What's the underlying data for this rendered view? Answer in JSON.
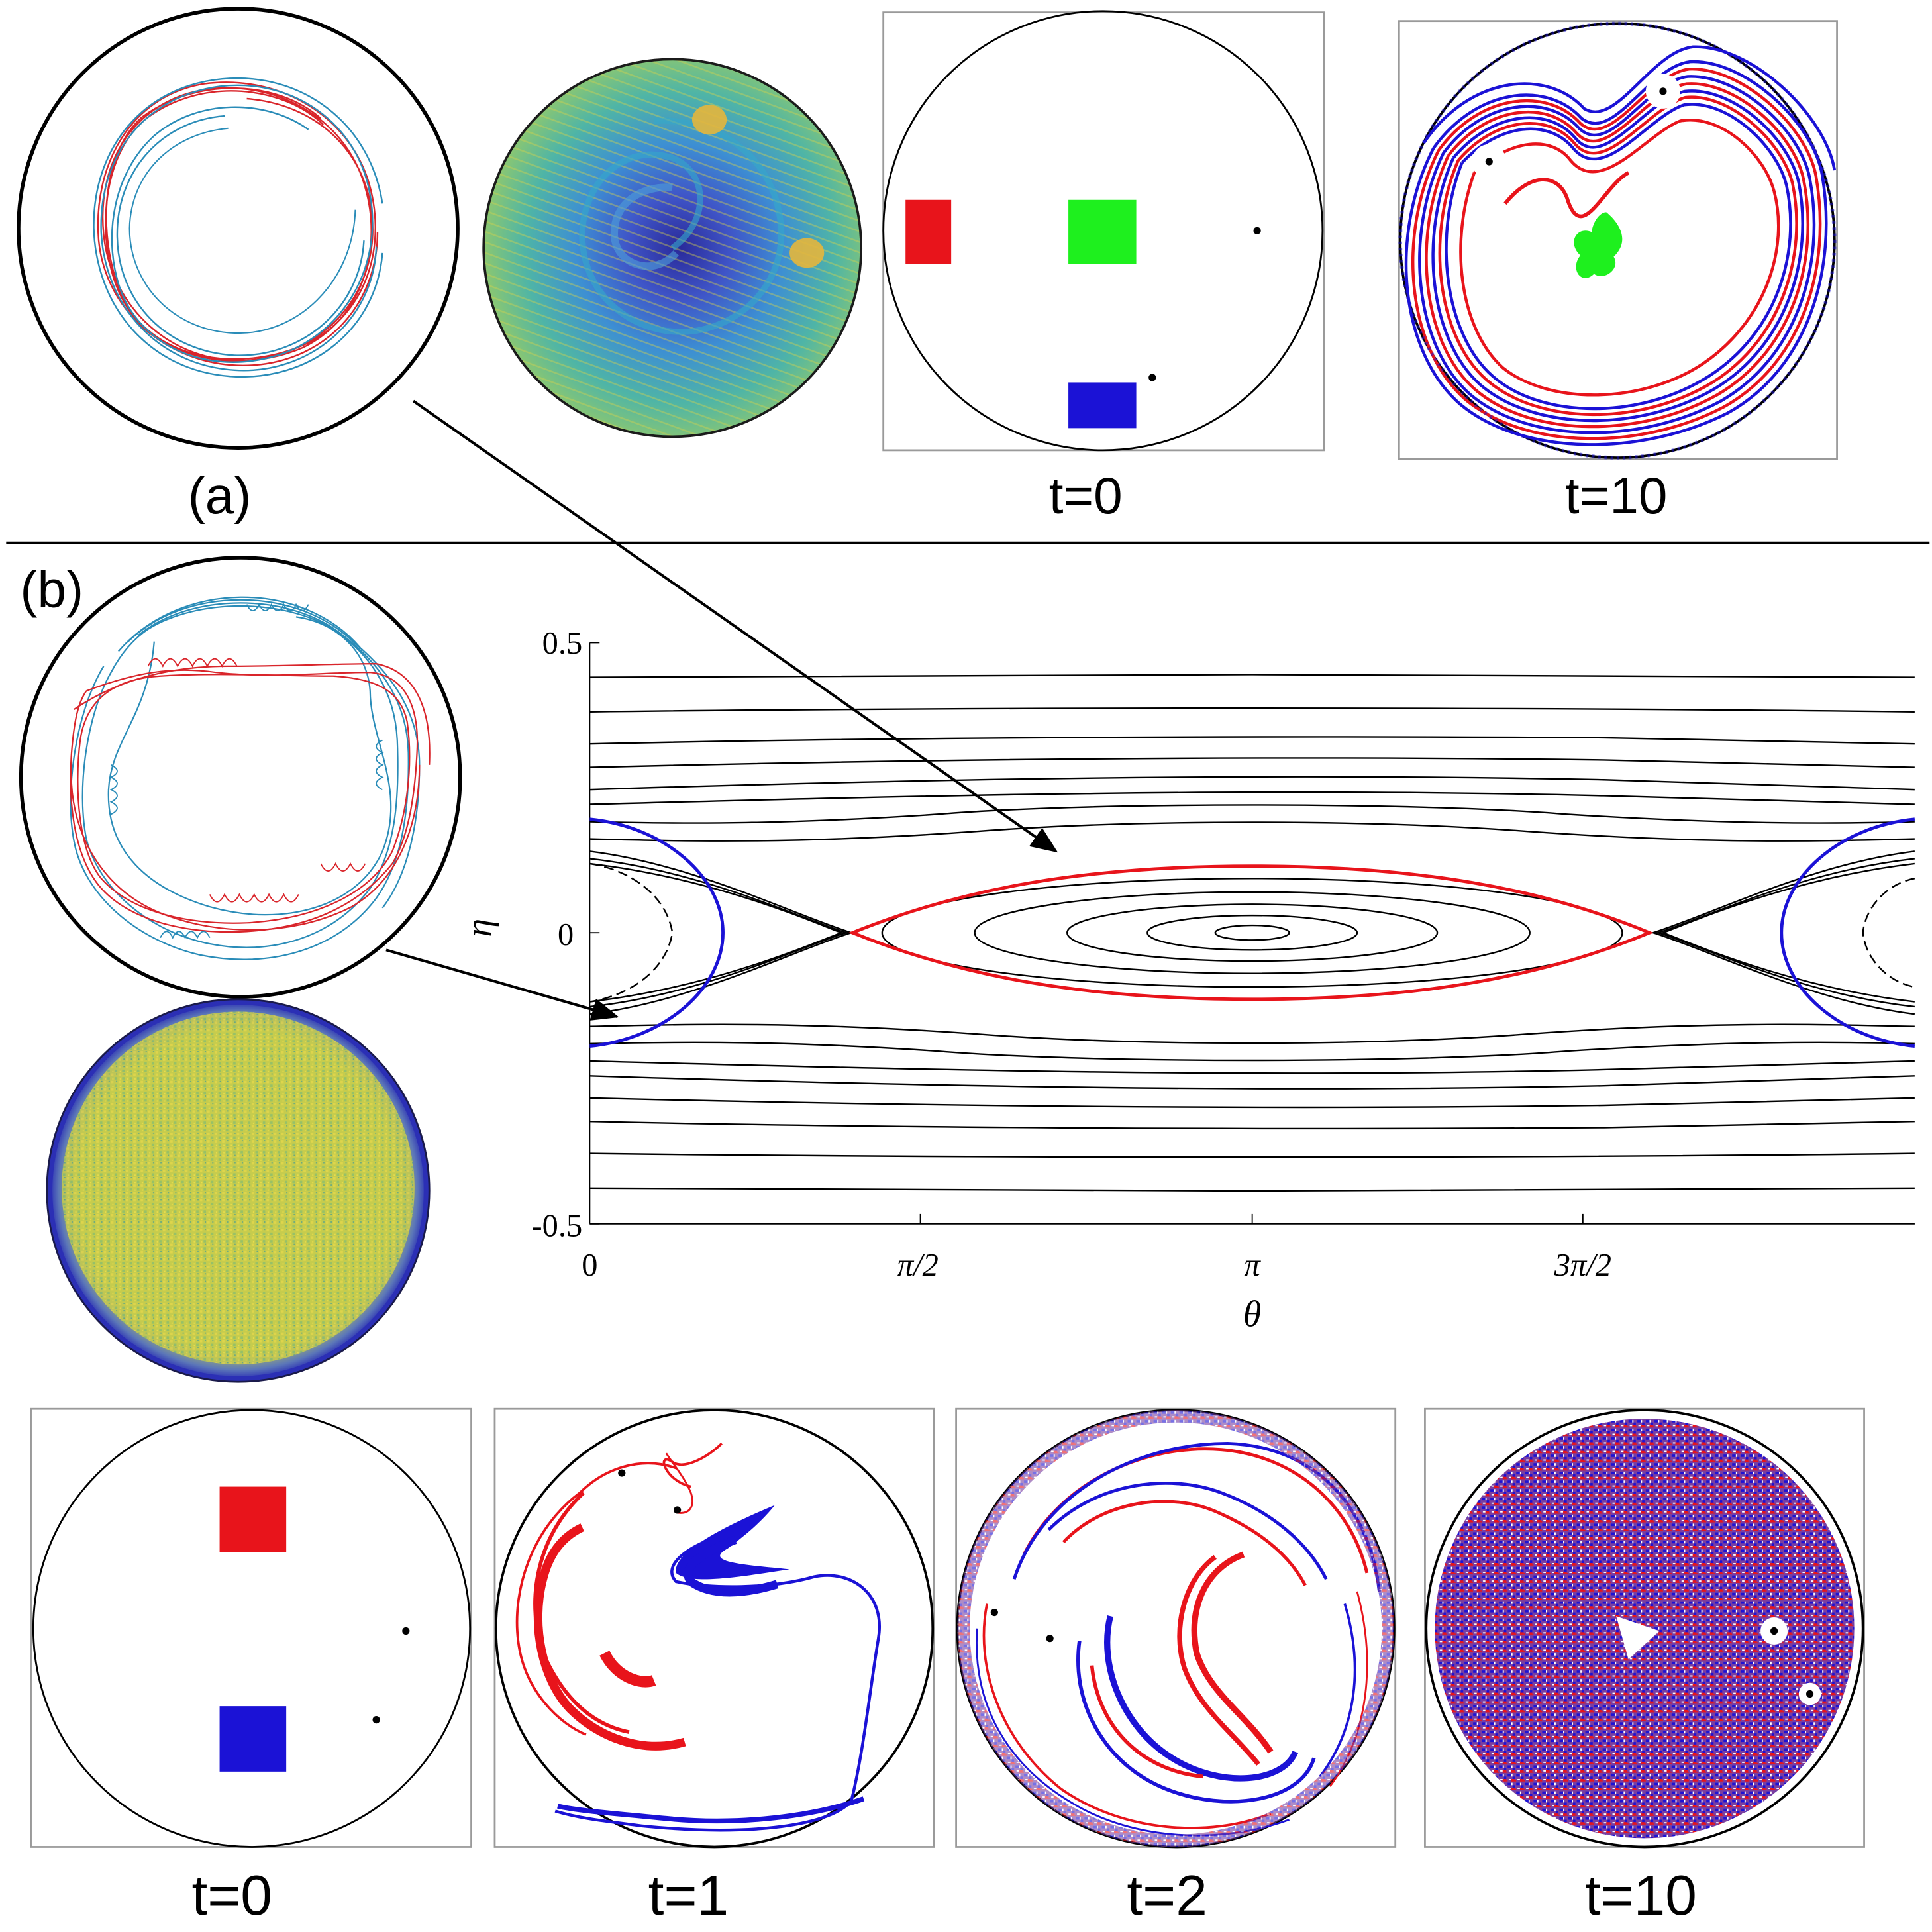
{
  "panel_a": {
    "label": "(a)",
    "time_labels": [
      "t=0",
      "t=10"
    ]
  },
  "panel_b": {
    "label": "(b)",
    "time_labels": [
      "t=0",
      "t=1",
      "t=2",
      "t=10"
    ]
  },
  "phase_plot": {
    "xlabel": "θ",
    "ylabel": "η",
    "xticks": [
      "0",
      "π/2",
      "π",
      "3π/2"
    ],
    "yticks": [
      "0.5",
      "0",
      "-0.5"
    ]
  },
  "colors": {
    "red": "#e8141b",
    "blue": "#1b12d6",
    "green": "#1ef01e",
    "teal": "#2a8cb8",
    "black": "#000000",
    "frame": "#9a9a9a",
    "yellow_noise": "#d8cf4a",
    "dark_blue_ring": "#2b2fb5"
  }
}
